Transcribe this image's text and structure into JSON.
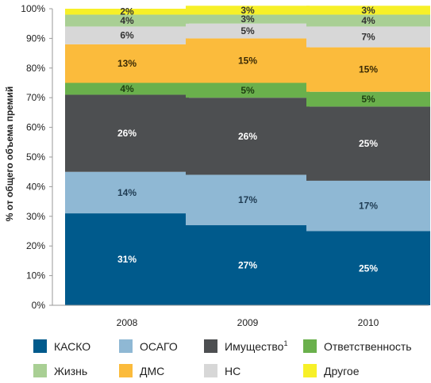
{
  "chart_data": {
    "type": "bar",
    "stacked": true,
    "ylabel": "% от общего объема премий",
    "ylim": [
      0,
      100
    ],
    "yticks": [
      "0%",
      "10%",
      "20%",
      "30%",
      "40%",
      "50%",
      "60%",
      "70%",
      "80%",
      "90%",
      "100%"
    ],
    "categories": [
      "2008",
      "2009",
      "2010"
    ],
    "series": [
      {
        "name": "КАСКО",
        "color": "#005a8c",
        "label_color": "#ffffff",
        "values": [
          31,
          27,
          25
        ],
        "labels": [
          "31%",
          "27%",
          "25%"
        ]
      },
      {
        "name": "ОСАГО",
        "color": "#8fb8d4",
        "label_color": "#1f3b52",
        "values": [
          14,
          17,
          17
        ],
        "labels": [
          "14%",
          "17%",
          "17%"
        ]
      },
      {
        "name": "Имущество",
        "legend_sup": "1",
        "color": "#4d4f51",
        "label_color": "#ffffff",
        "values": [
          26,
          26,
          25
        ],
        "labels": [
          "26%",
          "26%",
          "25%"
        ]
      },
      {
        "name": "Ответственность",
        "color": "#6ab04c",
        "label_color": "#1e3d12",
        "values": [
          4,
          5,
          5
        ],
        "labels": [
          "4%",
          "5%",
          "5%"
        ]
      },
      {
        "name": "ДМС",
        "color": "#fbbb3c",
        "label_color": "#3a2a05",
        "values": [
          13,
          15,
          15
        ],
        "labels": [
          "13%",
          "15%",
          "15%"
        ]
      },
      {
        "name": "НС",
        "color": "#d7d7d7",
        "label_color": "#333333",
        "values": [
          6,
          5,
          7
        ],
        "labels": [
          "6%",
          "5%",
          "7%"
        ]
      },
      {
        "name": "Жизнь",
        "color": "#a9cf94",
        "label_color": "#333333",
        "values": [
          4,
          3,
          4
        ],
        "labels": [
          "4%",
          "3%",
          "4%"
        ]
      },
      {
        "name": "Другое",
        "color": "#f7f028",
        "label_color": "#333333",
        "values": [
          2,
          3,
          3
        ],
        "labels": [
          "2%",
          "3%",
          "3%"
        ]
      }
    ],
    "legend": {
      "placement": "bottom",
      "order": [
        "КАСКО",
        "ОСАГО",
        "Имущество",
        "Ответственность",
        "Жизнь",
        "ДМС",
        "НС",
        "Другое"
      ]
    },
    "grid": false
  }
}
